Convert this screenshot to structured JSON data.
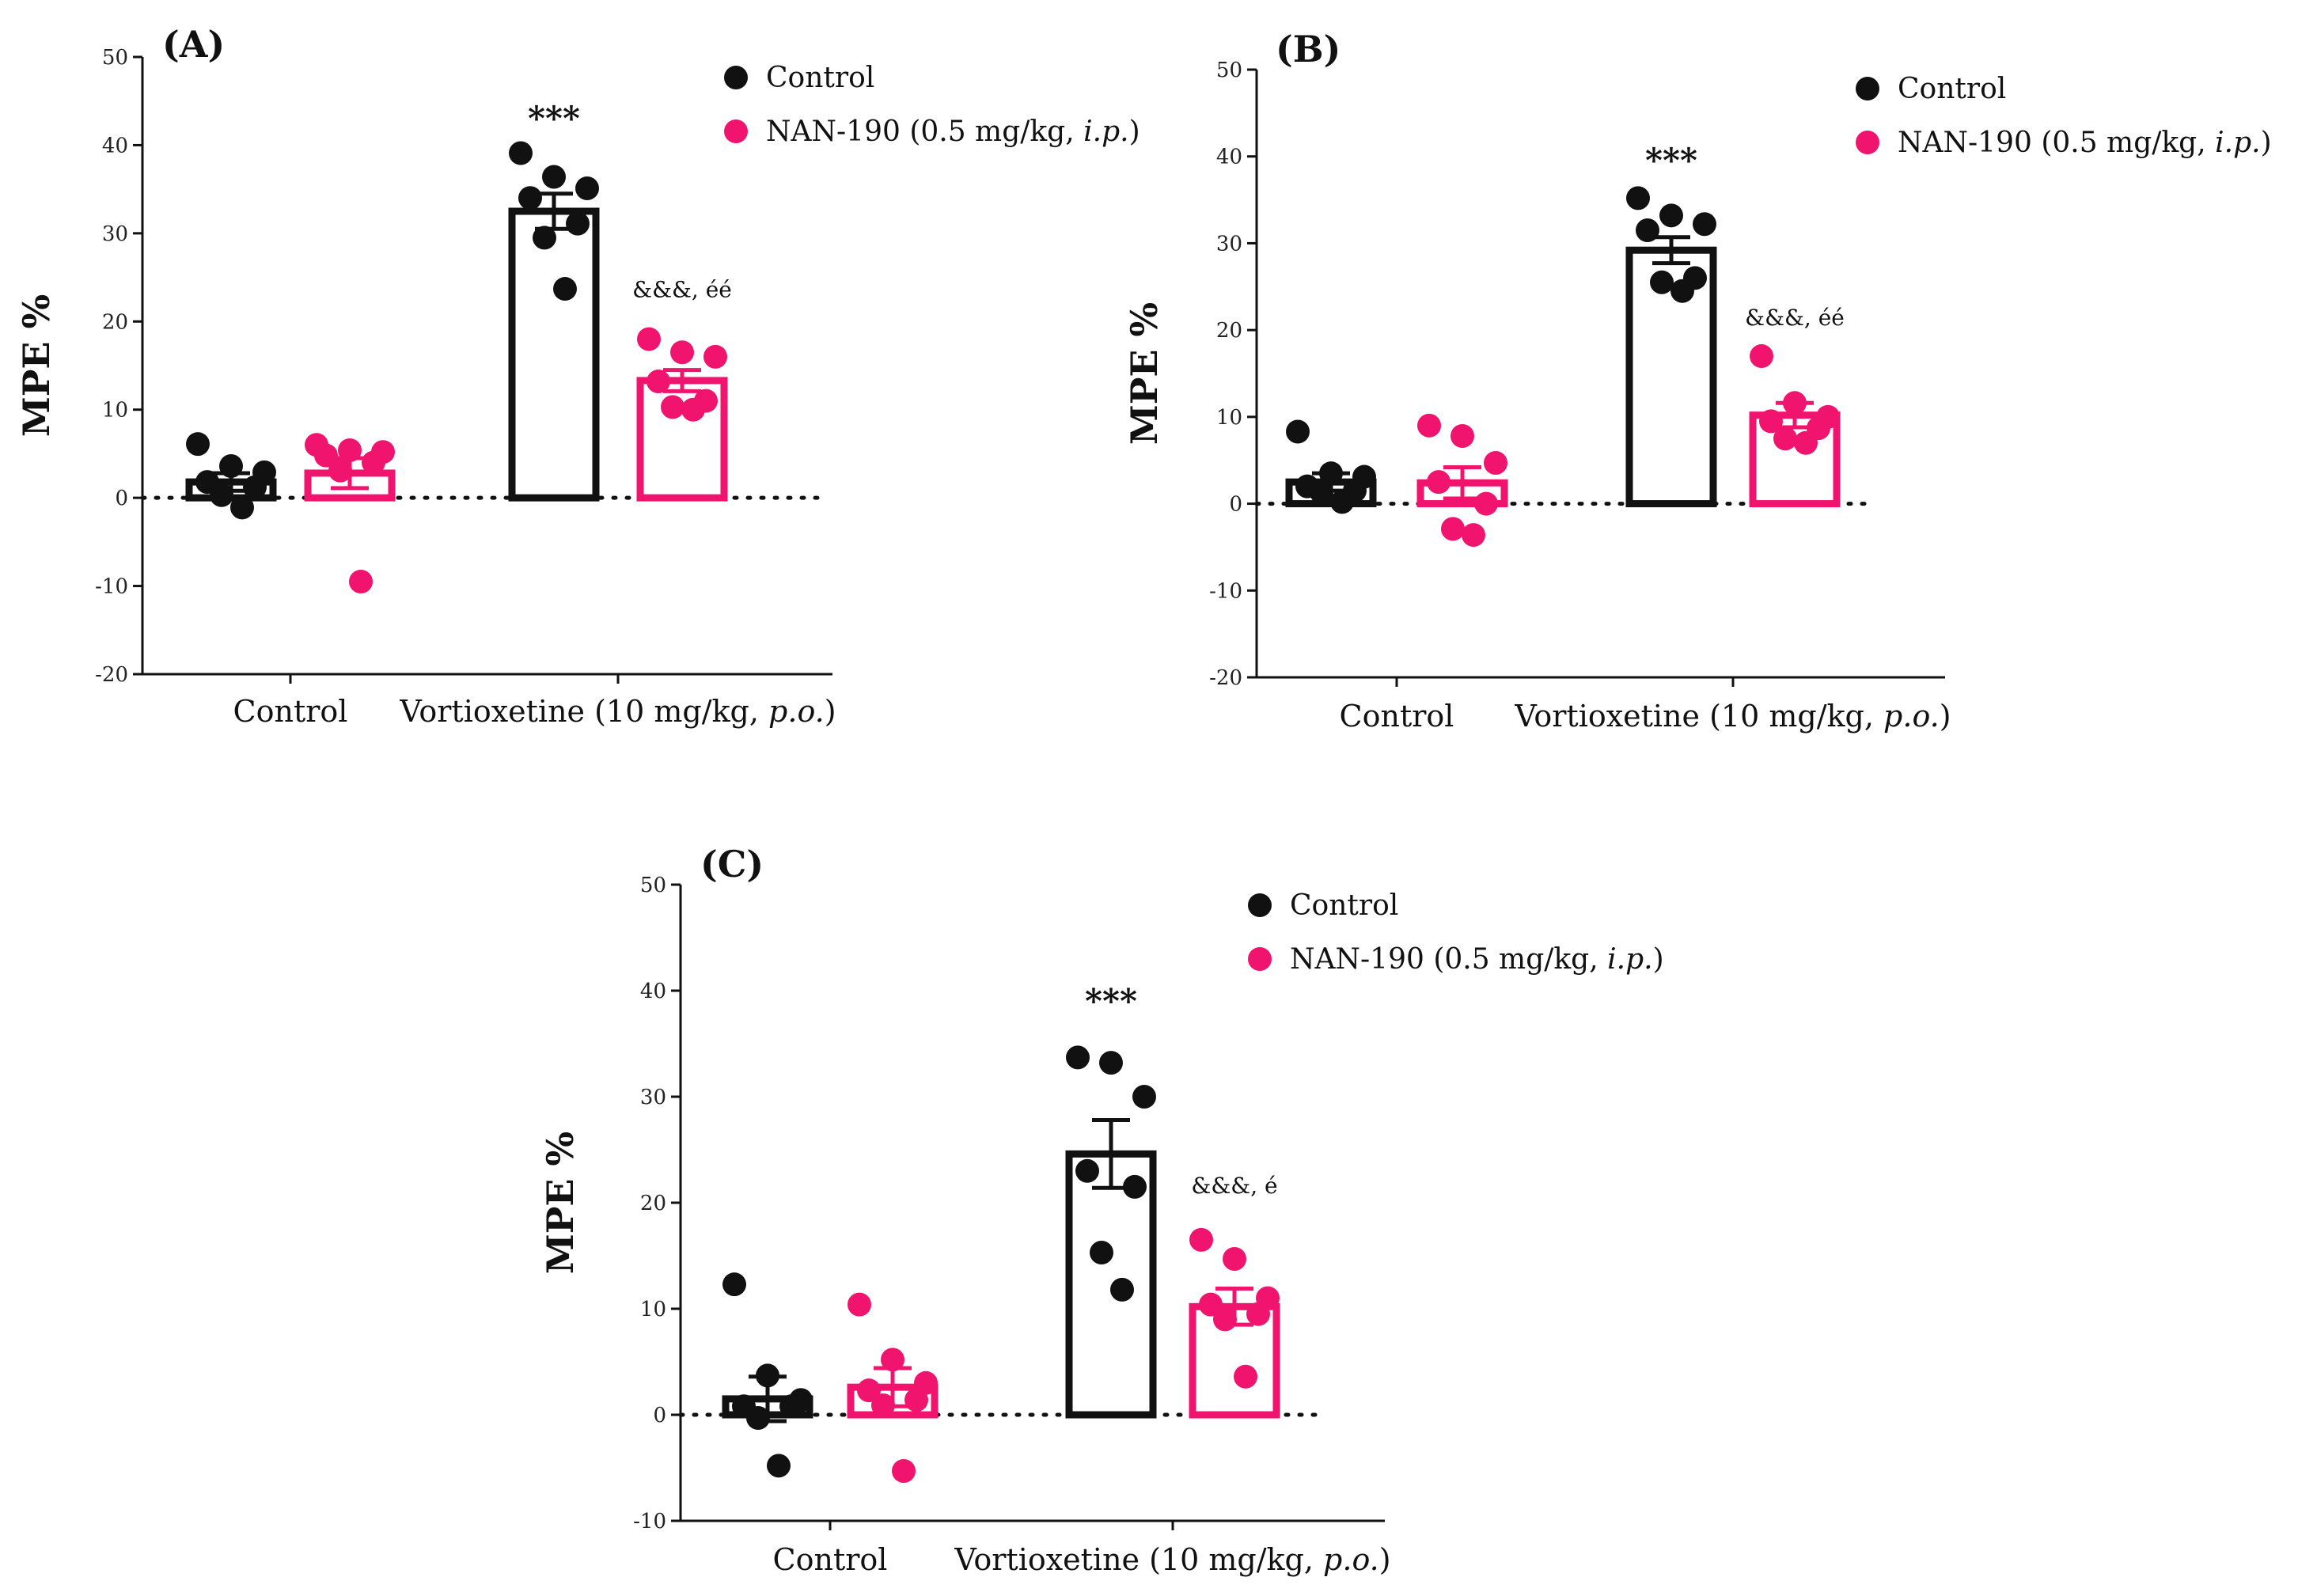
{
  "colors": {
    "control": "#111111",
    "nan190": "#f0146e"
  },
  "chart_data": [
    {
      "type": "bar",
      "panel": "(A)",
      "ylabel": "MPE %",
      "ylim": [
        -20,
        50
      ],
      "yticks": [
        50,
        40,
        30,
        20,
        10,
        0,
        -10,
        -20
      ],
      "categories": [
        "Control",
        "Vortioxetine (10 mg/kg, p.o.)"
      ],
      "category_plain": [
        "Control",
        "Vortioxetine (10 mg/kg, "
      ],
      "category_italic": [
        "",
        "p.o."
      ],
      "category_close": [
        "",
        ")"
      ],
      "legend": [
        {
          "name": "Control",
          "plain": "Control",
          "italic": "",
          "close": ""
        },
        {
          "name": "NAN-190 (0.5 mg/kg, i.p.)",
          "plain": "NAN-190 (0.5 mg/kg, ",
          "italic": "i.p.",
          "close": ")"
        }
      ],
      "series": [
        {
          "name": "Control",
          "means": [
            1.8,
            32.5
          ],
          "sem": [
            1.0,
            2.0
          ],
          "points": [
            [
              6.1,
              3.6,
              2.9,
              1.8,
              1.2,
              0.3,
              -1.1
            ],
            [
              39.1,
              36.4,
              35.1,
              34.0,
              31.1,
              29.5,
              23.7
            ]
          ]
        },
        {
          "name": "NAN-190 (0.5 mg/kg, i.p.)",
          "means": [
            2.8,
            13.3
          ],
          "sem": [
            1.7,
            1.2
          ],
          "points": [
            [
              6.0,
              5.4,
              5.2,
              4.8,
              4.0,
              3.1,
              -9.5
            ],
            [
              18.0,
              16.5,
              16.0,
              13.2,
              11.0,
              10.3,
              10.0
            ]
          ]
        }
      ],
      "annotations": [
        {
          "text": "***",
          "category": 1,
          "series": 0,
          "y": 43
        },
        {
          "text": "&&&, éé",
          "category": 1,
          "series": 1,
          "y": 23.5
        }
      ]
    },
    {
      "type": "bar",
      "panel": "(B)",
      "ylabel": "MPE %",
      "ylim": [
        -20,
        50
      ],
      "yticks": [
        50,
        40,
        30,
        20,
        10,
        0,
        -10,
        -20
      ],
      "categories": [
        "Control",
        "Vortioxetine (10 mg/kg, p.o.)"
      ],
      "category_plain": [
        "Control",
        "Vortioxetine (10 mg/kg, "
      ],
      "category_italic": [
        "",
        "p.o."
      ],
      "category_close": [
        "",
        ")"
      ],
      "legend": [
        {
          "name": "Control",
          "plain": "Control",
          "italic": "",
          "close": ""
        },
        {
          "name": "NAN-190 (0.5 mg/kg, i.p.)",
          "plain": "NAN-190 (0.5 mg/kg, ",
          "italic": "i.p.",
          "close": ")"
        }
      ],
      "series": [
        {
          "name": "Control",
          "means": [
            2.5,
            29.2
          ],
          "sem": [
            1.0,
            1.5
          ],
          "points": [
            [
              8.3,
              3.5,
              3.1,
              2.0,
              1.5,
              1.3,
              0.2
            ],
            [
              35.2,
              33.2,
              32.2,
              31.5,
              26.0,
              25.5,
              24.5
            ]
          ]
        },
        {
          "name": "NAN-190 (0.5 mg/kg, i.p.)",
          "means": [
            2.4,
            10.2
          ],
          "sem": [
            1.8,
            1.4
          ],
          "points": [
            [
              9.0,
              7.8,
              4.7,
              2.5,
              0.0,
              -2.9,
              -3.6
            ],
            [
              17.0,
              11.6,
              10.0,
              9.5,
              8.7,
              7.5,
              7.0
            ]
          ]
        }
      ],
      "annotations": [
        {
          "text": "***",
          "category": 1,
          "series": 0,
          "y": 39.5
        },
        {
          "text": "&&&, éé",
          "category": 1,
          "series": 1,
          "y": 21.3
        }
      ]
    },
    {
      "type": "bar",
      "panel": "(C)",
      "ylabel": "MPE %",
      "ylim": [
        -10,
        50
      ],
      "yticks": [
        50,
        40,
        30,
        20,
        10,
        0,
        -10
      ],
      "categories": [
        "Control",
        "Vortioxetine (10 mg/kg, p.o.)"
      ],
      "category_plain": [
        "Control",
        "Vortioxetine (10 mg/kg, "
      ],
      "category_italic": [
        "",
        "p.o."
      ],
      "category_close": [
        "",
        ")"
      ],
      "legend": [
        {
          "name": "Control",
          "plain": "Control",
          "italic": "",
          "close": ""
        },
        {
          "name": "NAN-190 (0.5 mg/kg, i.p.)",
          "plain": "NAN-190 (0.5 mg/kg, ",
          "italic": "i.p.",
          "close": ")"
        }
      ],
      "series": [
        {
          "name": "Control",
          "means": [
            1.5,
            24.6
          ],
          "sem": [
            2.1,
            3.2
          ],
          "points": [
            [
              12.3,
              3.7,
              1.4,
              0.8,
              0.8,
              -0.3,
              -4.8
            ],
            [
              33.7,
              33.2,
              30.0,
              23.0,
              21.5,
              15.3,
              11.8
            ]
          ]
        },
        {
          "name": "NAN-190 (0.5 mg/kg, i.p.)",
          "means": [
            2.6,
            10.2
          ],
          "sem": [
            1.8,
            1.7
          ],
          "points": [
            [
              10.4,
              5.2,
              3.0,
              2.3,
              1.4,
              0.9,
              -5.3
            ],
            [
              16.5,
              14.7,
              11.0,
              10.4,
              9.5,
              9.0,
              3.6
            ]
          ]
        }
      ],
      "annotations": [
        {
          "text": "***",
          "category": 1,
          "series": 0,
          "y": 39
        },
        {
          "text": "&&&, é",
          "category": 1,
          "series": 1,
          "y": 21.5
        }
      ]
    }
  ]
}
